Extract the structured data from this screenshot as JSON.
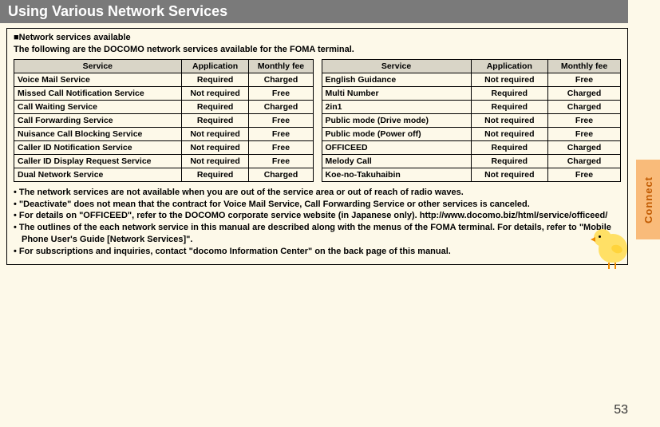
{
  "colors": {
    "page_bg": "#fdf9e9",
    "header_bg": "#7a7a7a",
    "header_text": "#ffffff",
    "th_bg": "#d9d5c7",
    "border": "#000000",
    "tab_bg": "#f9bb7a",
    "tab_text": "#c15a00",
    "chick_body": "#ffe066",
    "chick_beak": "#f08c00"
  },
  "header": {
    "title": "Using Various Network Services"
  },
  "section": {
    "sub1": "■Network services available",
    "sub2": "The following are the DOCOMO network services available for the FOMA terminal."
  },
  "tables": {
    "headers": {
      "service": "Service",
      "application": "Application",
      "fee": "Monthly fee"
    },
    "left": [
      {
        "service": "Voice Mail Service",
        "application": "Required",
        "fee": "Charged"
      },
      {
        "service": "Missed Call Notification Service",
        "application": "Not required",
        "fee": "Free"
      },
      {
        "service": "Call Waiting Service",
        "application": "Required",
        "fee": "Charged"
      },
      {
        "service": "Call Forwarding Service",
        "application": "Required",
        "fee": "Free"
      },
      {
        "service": "Nuisance Call Blocking Service",
        "application": "Not required",
        "fee": "Free"
      },
      {
        "service": "Caller ID Notification Service",
        "application": "Not required",
        "fee": "Free"
      },
      {
        "service": "Caller ID Display Request Service",
        "application": "Not required",
        "fee": "Free"
      },
      {
        "service": "Dual Network Service",
        "application": "Required",
        "fee": "Charged"
      }
    ],
    "right": [
      {
        "service": "English Guidance",
        "application": "Not required",
        "fee": "Free"
      },
      {
        "service": "Multi Number",
        "application": "Required",
        "fee": "Charged"
      },
      {
        "service": "2in1",
        "application": "Required",
        "fee": "Charged"
      },
      {
        "service": "Public mode (Drive mode)",
        "application": "Not required",
        "fee": "Free"
      },
      {
        "service": "Public mode (Power off)",
        "application": "Not required",
        "fee": "Free"
      },
      {
        "service": "OFFICEED",
        "application": "Required",
        "fee": "Charged"
      },
      {
        "service": "Melody Call",
        "application": "Required",
        "fee": "Charged"
      },
      {
        "service": "Koe-no-Takuhaibin",
        "application": "Not required",
        "fee": "Free"
      }
    ]
  },
  "notes": [
    "The network services are not available when you are out of the service area or out of reach of radio waves.",
    "\"Deactivate\" does not mean that the contract for Voice Mail Service, Call Forwarding Service or other services is canceled.",
    "For details on \"OFFICEED\", refer to the DOCOMO corporate service website (in Japanese only). http://www.docomo.biz/html/service/officeed/",
    "The outlines of the each network service in this manual are described along with the menus of the FOMA terminal. For details, refer to \"Mobile Phone User's Guide [Network Services]\".",
    "For subscriptions and inquiries, contact \"docomo Information Center\" on the back page of this manual."
  ],
  "side_tab": {
    "label": "Connect"
  },
  "page_number": "53"
}
